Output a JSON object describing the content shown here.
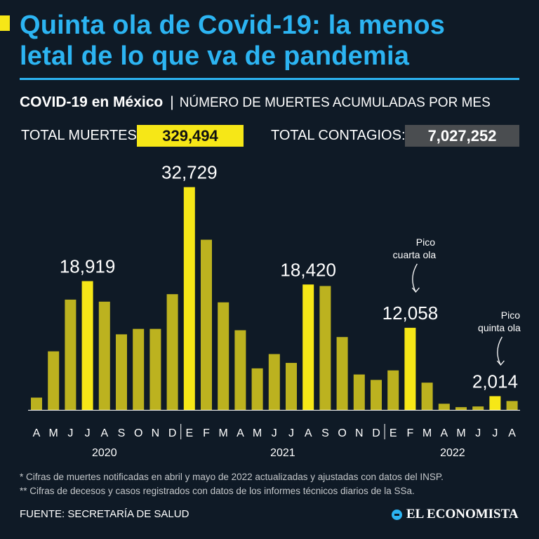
{
  "title": {
    "line1": "Quinta ola de Covid-19: la menos",
    "line2": "letal de lo que va de pandemia"
  },
  "subtitle": {
    "strong": "COVID-19 en México",
    "separator": "|",
    "light": "NÚMERO DE MUERTES ACUMULADAS POR MES"
  },
  "totals": {
    "deaths_label": "TOTAL MUERTES:",
    "deaths_value": "329,494",
    "cases_label": "TOTAL CONTAGIOS:",
    "cases_value": "7,027,252"
  },
  "chart_data": {
    "type": "bar",
    "categories": [
      "A",
      "M",
      "J",
      "J",
      "A",
      "S",
      "O",
      "N",
      "D",
      "E",
      "F",
      "M",
      "A",
      "M",
      "J",
      "J",
      "A",
      "S",
      "O",
      "N",
      "D",
      "E",
      "F",
      "M",
      "A",
      "M",
      "J",
      "J",
      "A"
    ],
    "years": [
      {
        "label": "2020",
        "start": 0,
        "end": 8
      },
      {
        "label": "2021",
        "start": 9,
        "end": 20
      },
      {
        "label": "2022",
        "start": 21,
        "end": 28
      }
    ],
    "values": [
      1800,
      8600,
      16200,
      18919,
      15900,
      11100,
      11900,
      11900,
      17000,
      32729,
      25000,
      15800,
      11700,
      6100,
      8200,
      6900,
      18420,
      18200,
      10700,
      5200,
      4400,
      5800,
      12058,
      4000,
      900,
      400,
      500,
      2014,
      1300
    ],
    "highlighted": [
      3,
      9,
      16,
      22,
      27
    ],
    "value_labels": [
      {
        "index": 3,
        "text": "18,919"
      },
      {
        "index": 9,
        "text": "32,729"
      },
      {
        "index": 16,
        "text": "18,420"
      },
      {
        "index": 22,
        "text": "12,058"
      },
      {
        "index": 27,
        "text": "2,014"
      }
    ],
    "annotations": [
      {
        "index": 22,
        "line1": "Pico",
        "line2": "cuarta ola"
      },
      {
        "index": 27,
        "line1": "Pico",
        "line2": "quinta ola"
      }
    ],
    "ylim": [
      0,
      33000
    ],
    "title": "COVID-19 en México",
    "xlabel": "",
    "ylabel": ""
  },
  "colors": {
    "bar": "#bcb21f",
    "highlight": "#f6e717",
    "background": "#0f1a26",
    "accent": "#2cb4f2",
    "axis": "#ffffff"
  },
  "footnotes": {
    "note1": "* Cifras de muertes notificadas en abril y mayo de 2022 actualizadas y ajustadas con datos del INSP.",
    "note2": "** Cifras de decesos y casos registrados  con datos de los informes técnicos diarios de la SSa."
  },
  "source": "FUENTE: SECRETARÍA DE SALUD",
  "brand": "EL ECONOMISTA"
}
